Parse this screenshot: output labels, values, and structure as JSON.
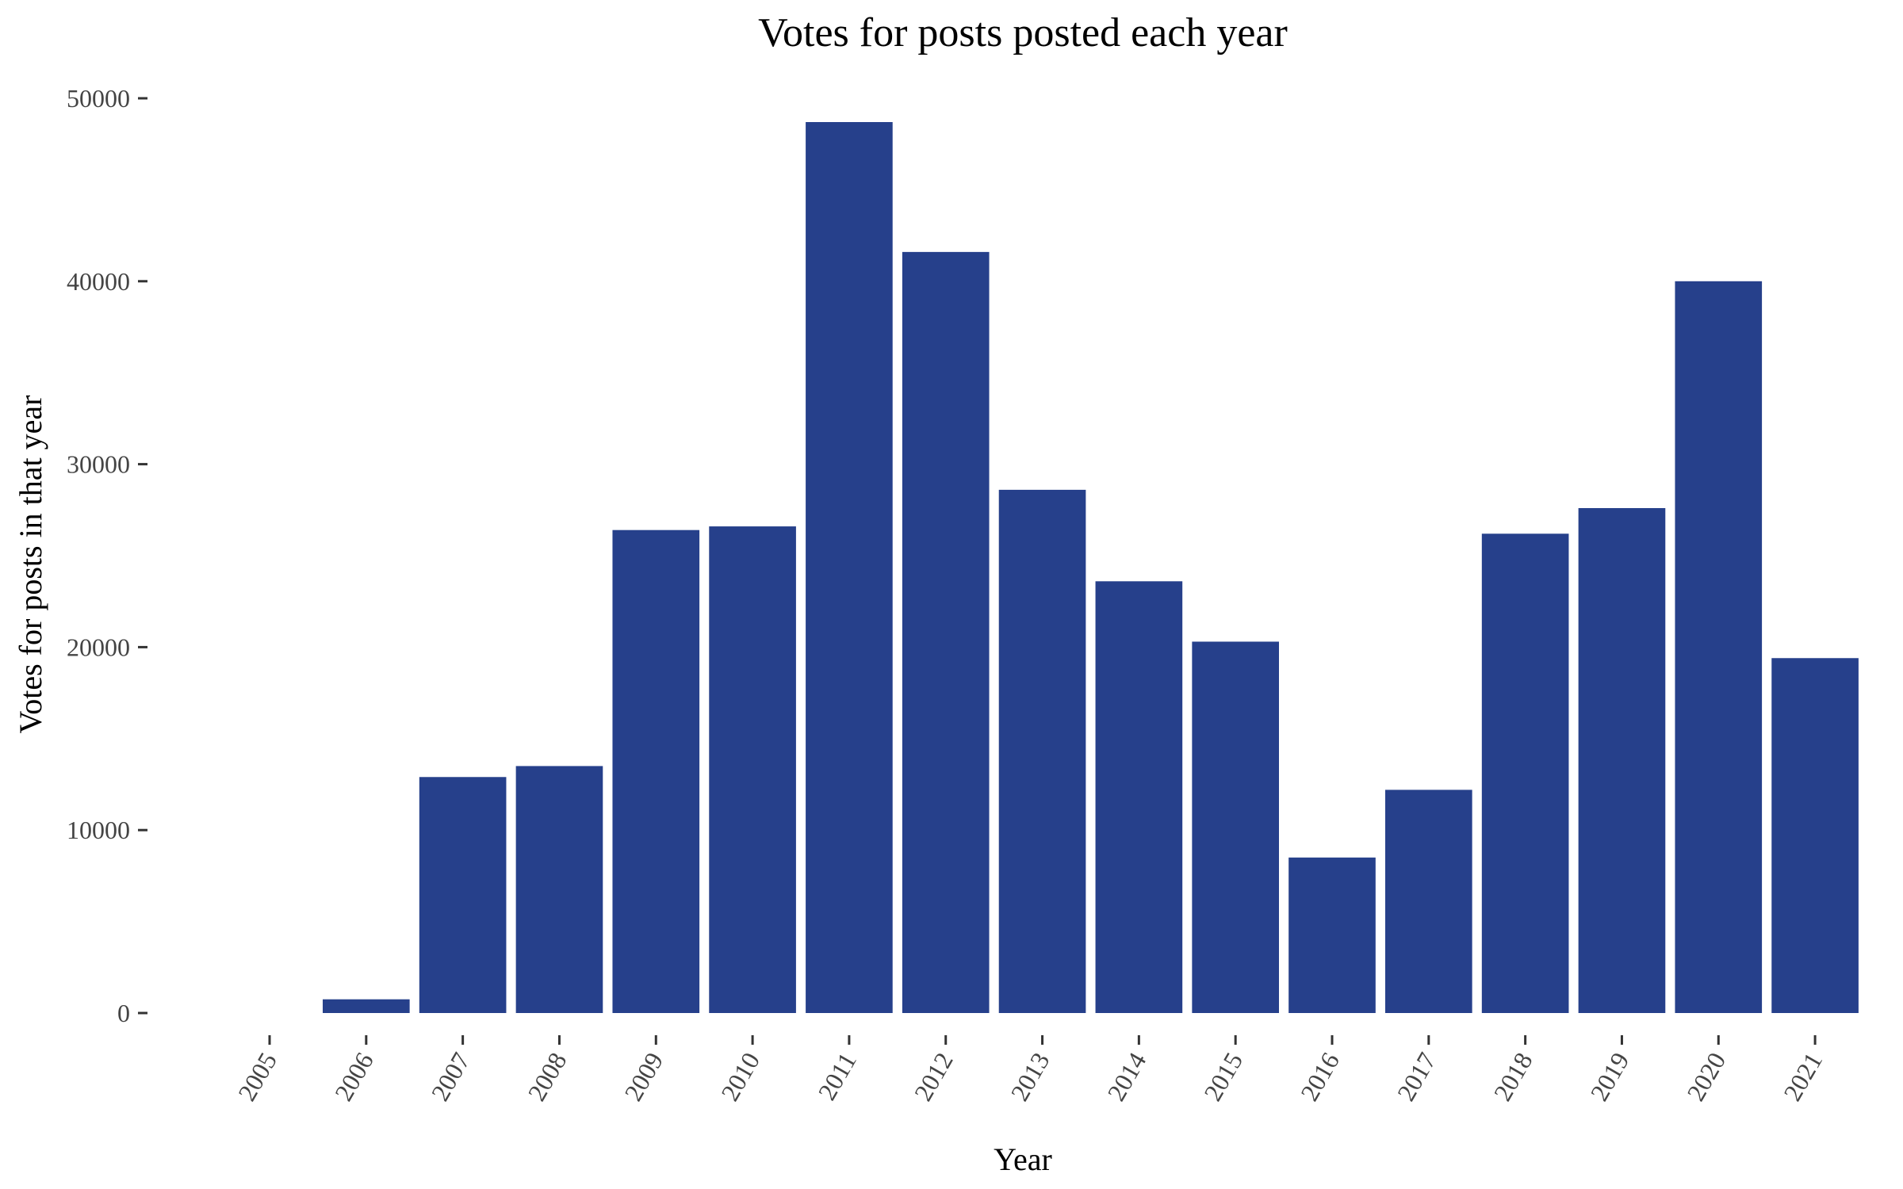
{
  "chart_data": {
    "type": "bar",
    "title": "Votes for posts posted each year",
    "xlabel": "Year",
    "ylabel": "Votes for posts in that year",
    "categories": [
      "2005",
      "2006",
      "2007",
      "2008",
      "2009",
      "2010",
      "2011",
      "2012",
      "2013",
      "2014",
      "2015",
      "2016",
      "2017",
      "2018",
      "2019",
      "2020",
      "2021"
    ],
    "values": [
      0,
      750,
      12900,
      13500,
      26400,
      26600,
      48700,
      41600,
      28600,
      23600,
      20300,
      8500,
      12200,
      26200,
      27600,
      40000,
      19400
    ],
    "ylim": [
      0,
      50000
    ],
    "yticks": [
      0,
      10000,
      20000,
      30000,
      40000,
      50000
    ],
    "grid": false,
    "legend": "none",
    "bar_color": "#26408b"
  }
}
